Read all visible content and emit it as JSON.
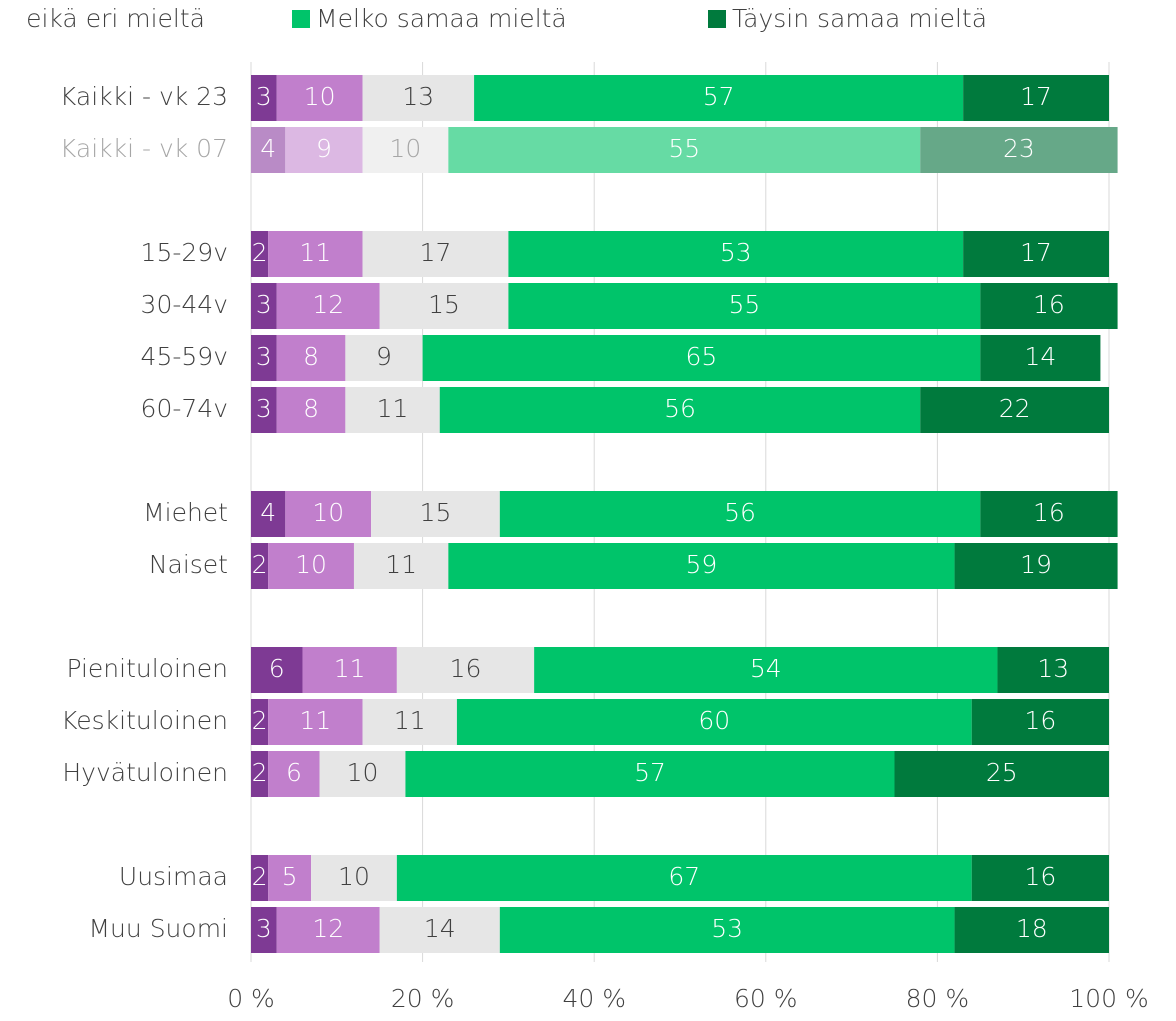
{
  "chart_data": {
    "type": "stacked-barh",
    "categories": [
      "Kaikki - vk 23",
      "Kaikki - vk 07",
      null,
      "15-29v",
      "30-44v",
      "45-59v",
      "60-74v",
      null,
      "Miehet",
      "Naiset",
      null,
      "Pienituloinen",
      "Keskituloinen",
      "Hyvätuloinen",
      null,
      "Uusimaa",
      "Muu Suomi"
    ],
    "faded": [
      false,
      true,
      false,
      false,
      false,
      false,
      false,
      false,
      false,
      false,
      false,
      false,
      false,
      false,
      false,
      false,
      false
    ],
    "series": [
      {
        "color": "#7e3a94",
        "faded_color": "#b98bc6",
        "label_color": "#ffffff",
        "values": [
          3,
          4,
          null,
          2,
          3,
          3,
          3,
          null,
          4,
          2,
          null,
          6,
          2,
          2,
          null,
          2,
          3
        ]
      },
      {
        "color": "#c17fcc",
        "faded_color": "#dcb8e3",
        "label_color": "#ffffff",
        "values": [
          10,
          9,
          null,
          11,
          12,
          8,
          8,
          null,
          10,
          10,
          null,
          11,
          11,
          6,
          null,
          5,
          12
        ]
      },
      {
        "name": "eikä eri mieltä",
        "color": "#e6e6e6",
        "faded_color": "#f0f0f0",
        "label_color": "#404040",
        "values": [
          13,
          10,
          null,
          17,
          15,
          9,
          11,
          null,
          15,
          11,
          null,
          16,
          11,
          10,
          null,
          10,
          14
        ]
      },
      {
        "name": "Melko samaa mieltä",
        "color": "#00c46a",
        "faded_color": "#66dba4",
        "label_color": "#ffffff",
        "values": [
          57,
          55,
          null,
          53,
          55,
          65,
          56,
          null,
          56,
          59,
          null,
          54,
          60,
          57,
          null,
          67,
          53
        ]
      },
      {
        "name": "Täysin samaa mieltä",
        "color": "#007a3d",
        "faded_color": "#66a888",
        "label_color": "#ffffff",
        "values": [
          17,
          23,
          null,
          17,
          16,
          14,
          22,
          null,
          16,
          19,
          null,
          13,
          16,
          25,
          null,
          16,
          18
        ]
      }
    ],
    "xlim": [
      0,
      100
    ],
    "xticks": [
      {
        "value": 0,
        "label": "0 %"
      },
      {
        "value": 20,
        "label": "20 %"
      },
      {
        "value": 40,
        "label": "40 %"
      },
      {
        "value": 60,
        "label": "60 %"
      },
      {
        "value": 80,
        "label": "80 %"
      },
      {
        "value": 100,
        "label": "100 %"
      }
    ],
    "grid": true
  }
}
